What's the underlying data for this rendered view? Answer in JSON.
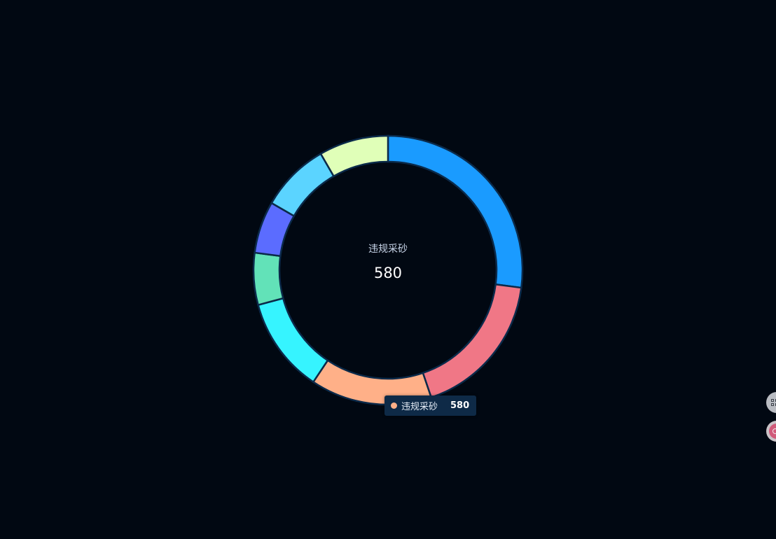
{
  "chart_data": {
    "type": "pie",
    "variant": "donut",
    "series": [
      {
        "values": [
          26,
          17,
          14,
          11,
          6,
          6,
          8,
          8
        ],
        "colors": [
          "#1a9bff",
          "#f07786",
          "#ffb088",
          "#36f4ff",
          "#62e2b8",
          "#5b6cff",
          "#5bd4ff",
          "#e0ffb8"
        ]
      }
    ],
    "center": {
      "label": "违规采砂",
      "value": "580"
    },
    "tooltip": {
      "name": "违规采砂",
      "value": "580",
      "color": "#ffb088"
    }
  },
  "colors": {
    "background": "#010812",
    "segment_border": "#0b2a4a"
  },
  "side_tools": [
    {
      "icon": "grid-icon"
    },
    {
      "icon": "theme-icon"
    }
  ]
}
